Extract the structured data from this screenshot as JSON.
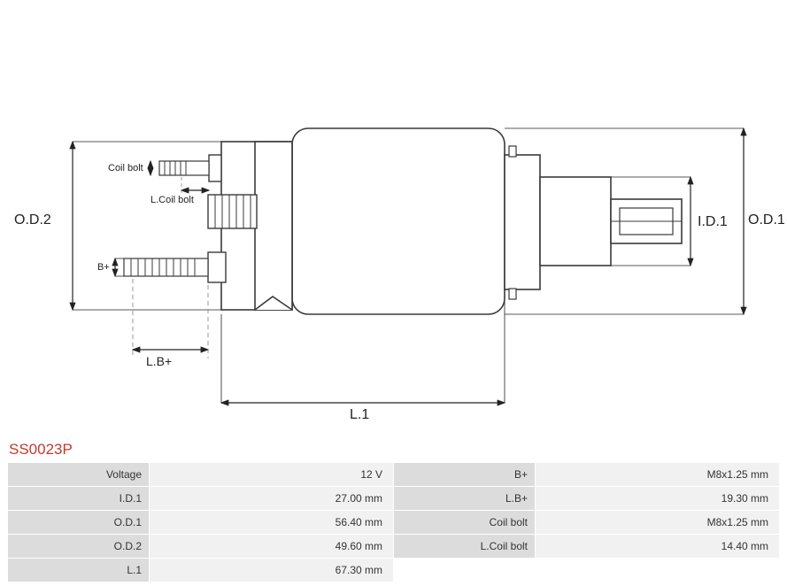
{
  "part_number": "SS0023P",
  "diagram": {
    "labels": {
      "od2": "O.D.2",
      "od1": "O.D.1",
      "id1": "I.D.1",
      "l1": "L.1",
      "lb_plus": "L.B+",
      "b_plus": "B+",
      "coil_bolt": "Coil bolt",
      "l_coil_bolt": "L.Coil bolt"
    },
    "colors": {
      "outline": "#3a3a3a",
      "dashed": "#8a8a8a",
      "arrow": "#222222",
      "bg": "#ffffff"
    },
    "stroke_width": 1.6,
    "thin_stroke": 1.0
  },
  "specs": {
    "rows": [
      {
        "label_l": "Voltage",
        "value_l": "12 V",
        "label_r": "B+",
        "value_r": "M8x1.25 mm"
      },
      {
        "label_l": "I.D.1",
        "value_l": "27.00 mm",
        "label_r": "L.B+",
        "value_r": "19.30 mm"
      },
      {
        "label_l": "O.D.1",
        "value_l": "56.40 mm",
        "label_r": "Coil bolt",
        "value_r": "M8x1.25 mm"
      },
      {
        "label_l": "O.D.2",
        "value_l": "49.60 mm",
        "label_r": "L.Coil bolt",
        "value_r": "14.40 mm"
      },
      {
        "label_l": "L.1",
        "value_l": "67.30 mm",
        "label_r": "",
        "value_r": ""
      }
    ]
  }
}
